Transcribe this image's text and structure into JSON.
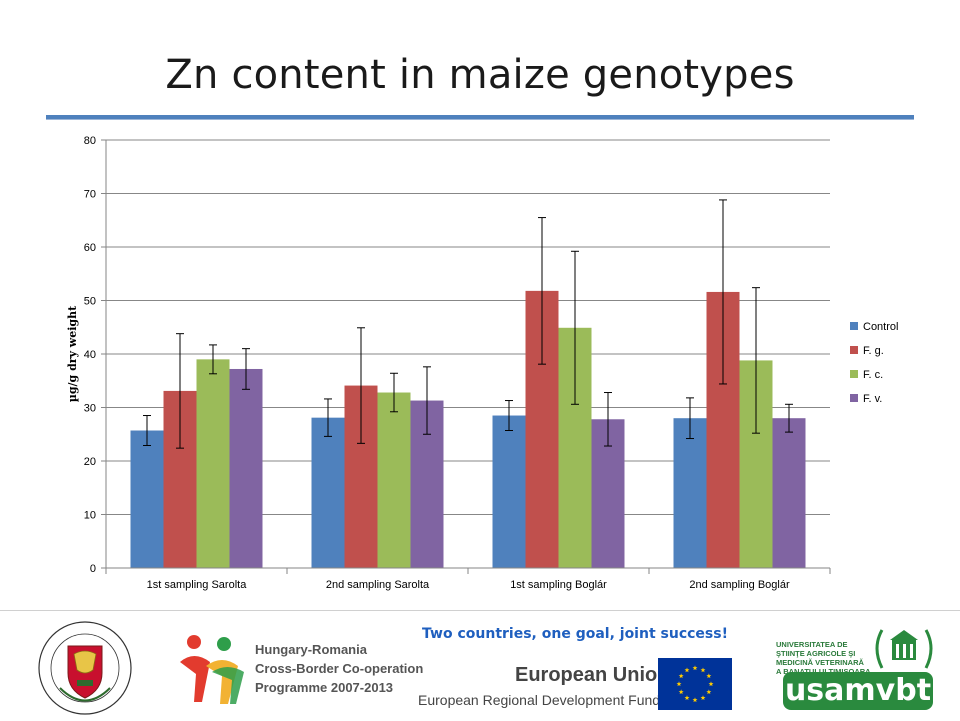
{
  "slide": {
    "title": "Zn content in maize genotypes",
    "slogan": "Two countries, one goal, joint success!"
  },
  "footer": {
    "university_left_seal_text": "UNIVERSITAS SCIENTIARUM SZEGEDIENSIS · SZEGEDI TUDOMÁNYEGYETEM",
    "programme_lines": [
      "Hungary-Romania",
      "Cross-Border Co-operation",
      "Programme 2007-2013"
    ],
    "eu_title": "European Union",
    "eu_fund": "European Regional Development Fund",
    "usamvbt_small": [
      "UNIVERSITATEA DE",
      "ŞTIINŢE AGRICOLE ŞI",
      "MEDICINĂ VETERINARĂ",
      "A BANATULUI TIMIŞOARA"
    ],
    "usamvbt_word": "usamvbt"
  },
  "colors": {
    "control": "#4f81bd",
    "fg": "#c0504d",
    "fc": "#9bbb59",
    "fv": "#8064a2",
    "accent_rule": "#4f81bd",
    "slogan": "#1f5fbf"
  },
  "chart_data": {
    "type": "bar",
    "title": "",
    "xlabel": "",
    "ylabel": "µg/g dry weight",
    "ylim": [
      0,
      80
    ],
    "yticks": [
      0,
      10,
      20,
      30,
      40,
      50,
      60,
      70,
      80
    ],
    "grid": true,
    "legend_position": "right",
    "categories": [
      "1st sampling Sarolta",
      "2nd sampling Sarolta",
      "1st sampling Boglár",
      "2nd sampling Boglár"
    ],
    "series": [
      {
        "name": "Control",
        "color": "#4f81bd",
        "values": [
          25.7,
          28.1,
          28.5,
          28.0
        ],
        "errors": [
          2.8,
          3.5,
          2.8,
          3.8
        ]
      },
      {
        "name": "F. g.",
        "color": "#c0504d",
        "values": [
          33.1,
          34.1,
          51.8,
          51.6
        ],
        "errors": [
          10.7,
          10.8,
          13.7,
          17.2
        ]
      },
      {
        "name": "F. c.",
        "color": "#9bbb59",
        "values": [
          39.0,
          32.8,
          44.9,
          38.8
        ],
        "errors": [
          2.7,
          3.6,
          14.3,
          13.6
        ]
      },
      {
        "name": "F. v.",
        "color": "#8064a2",
        "values": [
          37.2,
          31.3,
          27.8,
          28.0
        ],
        "errors": [
          3.8,
          6.3,
          5.0,
          2.6
        ]
      }
    ]
  }
}
